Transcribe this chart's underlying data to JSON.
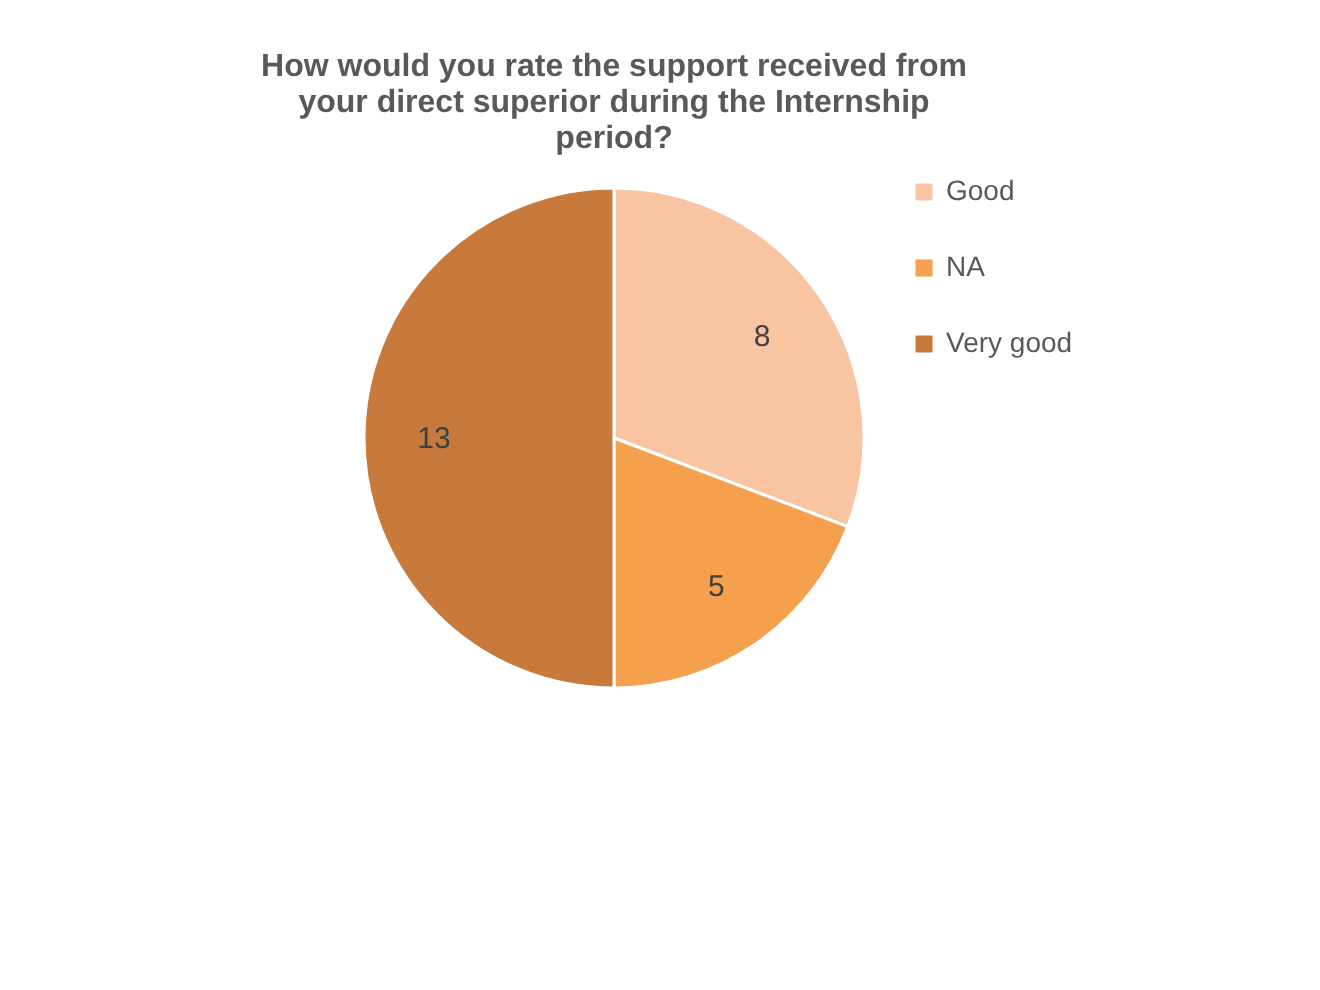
{
  "chart_data": {
    "type": "pie",
    "title": "How would you rate the support received from your direct superior during the Internship period?",
    "categories": [
      "Good",
      "NA",
      "Very good"
    ],
    "values": [
      8,
      5,
      13
    ],
    "colors": [
      "#f8c4a2",
      "#f4a04c",
      "#c87a3c"
    ],
    "data_labels": true,
    "legend": "right"
  }
}
